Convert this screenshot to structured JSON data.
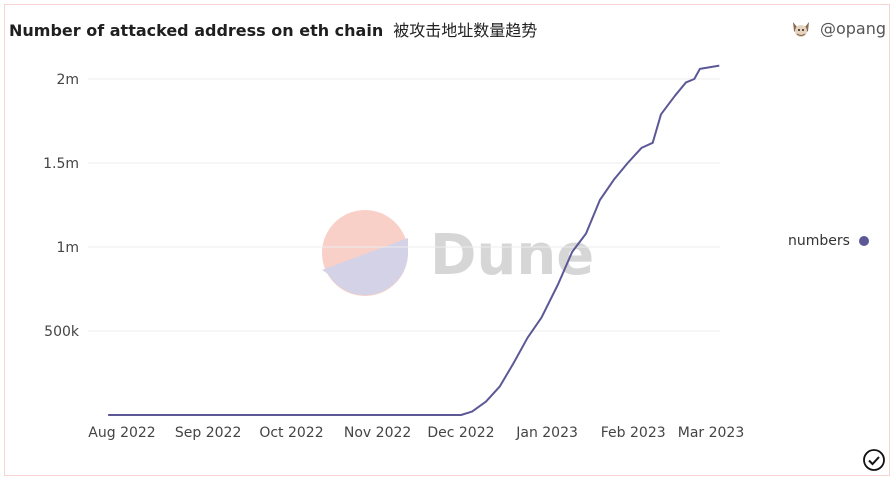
{
  "header": {
    "title": "Number of attacked address on eth chain",
    "subtitle": "被攻击地址数量趋势",
    "username": "@opang"
  },
  "watermark": {
    "text": "Dune",
    "colors": [
      "#f9d0c8",
      "#d4d2e6"
    ]
  },
  "legend": {
    "label": "numbers",
    "color": "#5c5896"
  },
  "icons": {
    "avatar": "cat-avatar-icon",
    "status": "check-circle-icon"
  },
  "chart_data": {
    "type": "line",
    "title": "Number of attacked address on eth chain",
    "xlabel": "",
    "ylabel": "",
    "ylim": [
      0,
      2000000
    ],
    "y_ticks": [
      {
        "value": 500000,
        "label": "500k"
      },
      {
        "value": 1000000,
        "label": "1m"
      },
      {
        "value": 1500000,
        "label": "1.5m"
      },
      {
        "value": 2000000,
        "label": "2m"
      }
    ],
    "x_ticks": [
      {
        "date": "2022-08-01",
        "label": "Aug 2022"
      },
      {
        "date": "2022-09-01",
        "label": "Sep 2022"
      },
      {
        "date": "2022-10-01",
        "label": "Oct 2022"
      },
      {
        "date": "2022-11-01",
        "label": "Nov 2022"
      },
      {
        "date": "2022-12-01",
        "label": "Dec 2022"
      },
      {
        "date": "2023-01-01",
        "label": "Jan 2023"
      },
      {
        "date": "2023-02-01",
        "label": "Feb 2023"
      },
      {
        "date": "2023-03-01",
        "label": "Mar 2023"
      }
    ],
    "grid": true,
    "legend_position": "right",
    "series": [
      {
        "name": "numbers",
        "color": "#5c5896",
        "points": [
          [
            "2022-07-27",
            0
          ],
          [
            "2022-12-01",
            0
          ],
          [
            "2022-12-05",
            20000
          ],
          [
            "2022-12-10",
            80000
          ],
          [
            "2022-12-15",
            170000
          ],
          [
            "2022-12-20",
            310000
          ],
          [
            "2022-12-25",
            460000
          ],
          [
            "2022-12-30",
            580000
          ],
          [
            "2023-01-05",
            780000
          ],
          [
            "2023-01-10",
            970000
          ],
          [
            "2023-01-15",
            1080000
          ],
          [
            "2023-01-20",
            1280000
          ],
          [
            "2023-01-25",
            1400000
          ],
          [
            "2023-01-30",
            1500000
          ],
          [
            "2023-02-04",
            1590000
          ],
          [
            "2023-02-08",
            1620000
          ],
          [
            "2023-02-11",
            1790000
          ],
          [
            "2023-02-16",
            1900000
          ],
          [
            "2023-02-20",
            1980000
          ],
          [
            "2023-02-23",
            2000000
          ],
          [
            "2023-02-25",
            2060000
          ],
          [
            "2023-03-04",
            2080000
          ]
        ]
      }
    ]
  }
}
